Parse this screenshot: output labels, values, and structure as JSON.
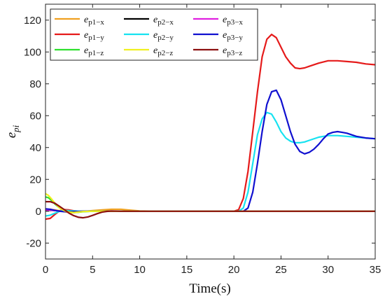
{
  "chart_data": {
    "type": "line",
    "xlabel": "Time(s)",
    "ylabel": "e",
    "ylabel_sub": "pi",
    "xlim": [
      0,
      35
    ],
    "ylim": [
      -30,
      130
    ],
    "xticks": [
      0,
      5,
      10,
      15,
      20,
      25,
      30,
      35
    ],
    "yticks": [
      -20,
      0,
      20,
      40,
      60,
      80,
      100,
      120
    ],
    "grid": false,
    "legend_position": "top-left",
    "series": [
      {
        "name": "e",
        "sub": "p1−x",
        "color": "#f0a020",
        "x": [
          0,
          0.5,
          1,
          1.5,
          2,
          2.5,
          3,
          3.5,
          4,
          5,
          6,
          7,
          8,
          9,
          10,
          12,
          35
        ],
        "y": [
          1,
          1.1,
          0.8,
          0.3,
          -0.3,
          -0.8,
          -0.9,
          -0.6,
          -0.2,
          0.4,
          0.8,
          1.2,
          1.2,
          0.7,
          0.2,
          0,
          0
        ]
      },
      {
        "name": "e",
        "sub": "p2−x",
        "color": "#000000",
        "x": [
          0,
          0.5,
          1,
          1.5,
          2,
          2.5,
          3,
          4,
          5,
          6,
          8,
          35
        ],
        "y": [
          0.5,
          0.6,
          0.4,
          0.1,
          -0.1,
          -0.2,
          -0.1,
          0,
          0,
          0,
          0,
          0
        ]
      },
      {
        "name": "e",
        "sub": "p3−x",
        "color": "#e020e0",
        "x": [
          0,
          0.5,
          1,
          1.5,
          2,
          2.5,
          3,
          4,
          5,
          6,
          8,
          35
        ],
        "y": [
          0.8,
          0.7,
          0.4,
          0.1,
          -0.1,
          -0.2,
          -0.1,
          0,
          0,
          0,
          0,
          0
        ]
      },
      {
        "name": "e",
        "sub": "p1−y",
        "color": "#e51a1a",
        "x": [
          0,
          0.5,
          1,
          1.5,
          2,
          2.5,
          3,
          3.5,
          4,
          5,
          6,
          8,
          20,
          20.5,
          21,
          21.5,
          22,
          22.5,
          23,
          23.5,
          24,
          24.5,
          25,
          25.5,
          26,
          26.5,
          27,
          27.5,
          28,
          29,
          30,
          31,
          32,
          33,
          34,
          35
        ],
        "y": [
          -5,
          -4.5,
          -2,
          0.3,
          1,
          0.8,
          0.3,
          0,
          0,
          0,
          0,
          0,
          0,
          1,
          8,
          25,
          50,
          75,
          97,
          108,
          111,
          109,
          103,
          97,
          93,
          90,
          89.5,
          90,
          91,
          93,
          94.5,
          94.5,
          94,
          93.5,
          92.5,
          92
        ]
      },
      {
        "name": "e",
        "sub": "p2−y",
        "color": "#16e2f0",
        "x": [
          0,
          0.5,
          1,
          1.5,
          2,
          3,
          4,
          20.5,
          21,
          21.5,
          22,
          22.5,
          23,
          23.5,
          24,
          24.5,
          25,
          25.5,
          26,
          26.5,
          27,
          27.5,
          28,
          29,
          30,
          31,
          32,
          33,
          34,
          35
        ],
        "y": [
          -3,
          -2.5,
          -1.2,
          0,
          0.5,
          0.2,
          0,
          0,
          2,
          12,
          30,
          48,
          58,
          62,
          61,
          56,
          50,
          46,
          44,
          43,
          43,
          43.5,
          44.5,
          46.5,
          47.5,
          47.5,
          47,
          46.5,
          46,
          45.5
        ]
      },
      {
        "name": "e",
        "sub": "p3−y",
        "color": "#1010d0",
        "x": [
          0,
          0.5,
          1,
          1.5,
          2,
          3,
          4,
          21,
          21.5,
          22,
          22.5,
          23,
          23.5,
          24,
          24.5,
          25,
          25.5,
          26,
          26.5,
          27,
          27.5,
          28,
          28.5,
          29,
          29.5,
          30,
          30.5,
          31,
          31.5,
          32,
          33,
          34,
          35
        ],
        "y": [
          1.5,
          1.2,
          0.5,
          0,
          -0.3,
          -0.2,
          0,
          0,
          2,
          12,
          30,
          50,
          67,
          75,
          76,
          70,
          60,
          50,
          42,
          37.5,
          36,
          37,
          39,
          42,
          45.5,
          48.5,
          49.5,
          50,
          49.5,
          49,
          47,
          46,
          45.5
        ]
      },
      {
        "name": "e",
        "sub": "p1−z",
        "color": "#2ee02e",
        "x": [
          0,
          0.3,
          0.6,
          1,
          1.5,
          2,
          2.5,
          3,
          3.5,
          4,
          5,
          6,
          35
        ],
        "y": [
          9,
          8.5,
          7,
          4.5,
          2,
          0.5,
          -0.4,
          -0.8,
          -0.6,
          -0.3,
          0,
          0,
          0
        ]
      },
      {
        "name": "e",
        "sub": "p2−z",
        "color": "#f0f020",
        "x": [
          0,
          0.3,
          0.6,
          1,
          1.5,
          2,
          2.5,
          3,
          3.5,
          4,
          5,
          6,
          35
        ],
        "y": [
          11,
          10,
          8,
          5,
          2,
          0.3,
          -0.6,
          -0.8,
          -0.5,
          -0.2,
          0,
          0,
          0
        ]
      },
      {
        "name": "e",
        "sub": "p3−z",
        "color": "#8c1010",
        "x": [
          0,
          0.5,
          1,
          1.5,
          2,
          2.5,
          3,
          3.5,
          4,
          4.5,
          5,
          5.5,
          6,
          6.5,
          7,
          8,
          35
        ],
        "y": [
          6,
          6,
          5,
          3,
          1,
          -1.2,
          -2.8,
          -3.8,
          -4.1,
          -3.6,
          -2.6,
          -1.5,
          -0.6,
          -0.1,
          0.1,
          0,
          0
        ]
      }
    ]
  }
}
